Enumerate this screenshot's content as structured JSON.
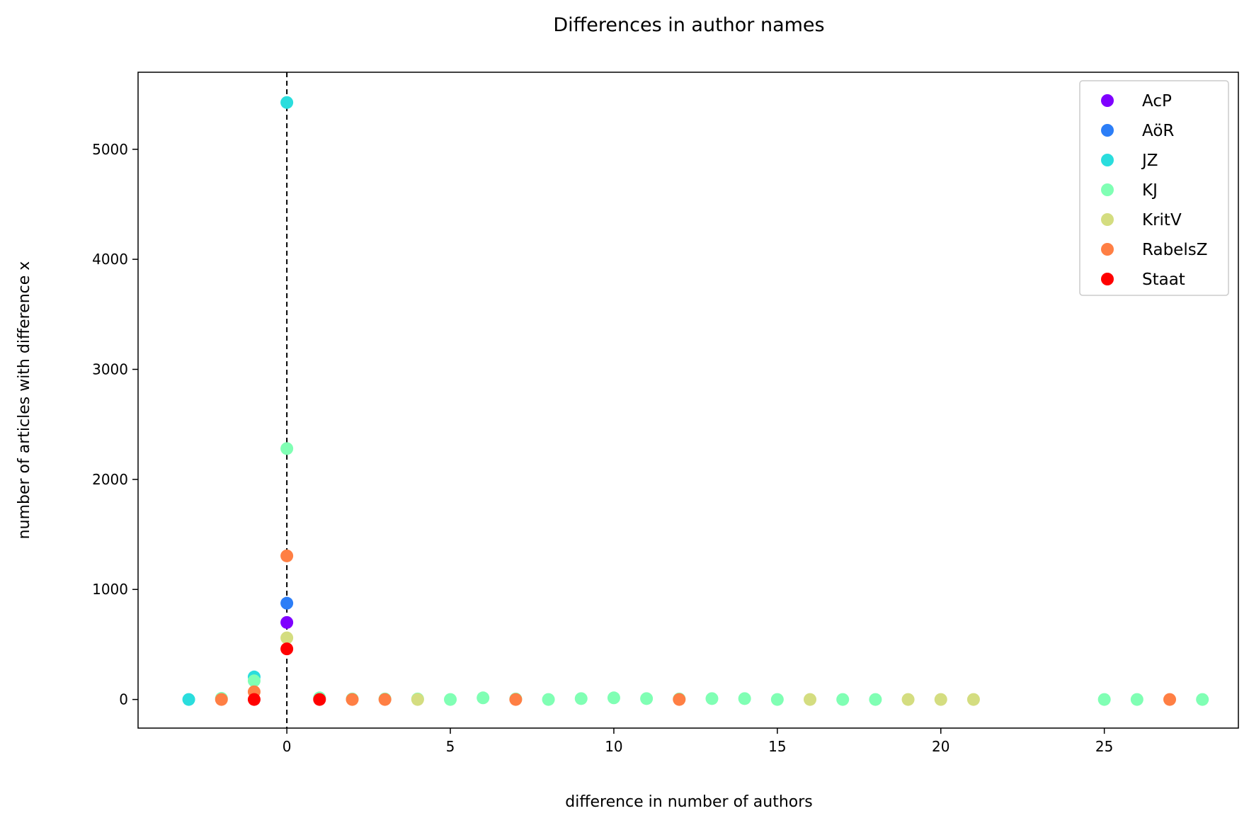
{
  "chart_data": {
    "type": "scatter",
    "title": "Differences in author names",
    "xlabel": "difference in number of authors",
    "ylabel": "number of articles with difference x",
    "xlim": [
      -4.55,
      29.1
    ],
    "ylim": [
      -260,
      5700
    ],
    "xticks": [
      0,
      5,
      10,
      15,
      20,
      25
    ],
    "yticks": [
      0,
      1000,
      2000,
      3000,
      4000,
      5000
    ],
    "grid": false,
    "legend_position": "top-right",
    "reference_line": {
      "x": 0,
      "style": "dashed",
      "color": "#000000"
    },
    "series": [
      {
        "name": "AcP",
        "color": "#7f00ff",
        "points": [
          [
            0,
            700
          ]
        ]
      },
      {
        "name": "AöR",
        "color": "#2c7ef7",
        "points": [
          [
            0,
            875
          ]
        ]
      },
      {
        "name": "JZ",
        "color": "#2adddd",
        "points": [
          [
            -3,
            0
          ],
          [
            -1,
            205
          ],
          [
            0,
            5425
          ]
        ]
      },
      {
        "name": "KJ",
        "color": "#80ffb4",
        "points": [
          [
            -2,
            10
          ],
          [
            -1,
            170
          ],
          [
            0,
            2280
          ],
          [
            1,
            15
          ],
          [
            2,
            5
          ],
          [
            3,
            5
          ],
          [
            4,
            5
          ],
          [
            5,
            0
          ],
          [
            6,
            15
          ],
          [
            7,
            5
          ],
          [
            8,
            0
          ],
          [
            9,
            8
          ],
          [
            10,
            15
          ],
          [
            11,
            8
          ],
          [
            12,
            5
          ],
          [
            13,
            8
          ],
          [
            14,
            8
          ],
          [
            15,
            0
          ],
          [
            17,
            0
          ],
          [
            18,
            0
          ],
          [
            25,
            0
          ],
          [
            26,
            0
          ],
          [
            28,
            0
          ]
        ]
      },
      {
        "name": "KritV",
        "color": "#d4dd80",
        "points": [
          [
            0,
            560
          ],
          [
            4,
            0
          ],
          [
            16,
            0
          ],
          [
            19,
            0
          ],
          [
            20,
            0
          ],
          [
            21,
            0
          ]
        ]
      },
      {
        "name": "RabelsZ",
        "color": "#ff7f44",
        "points": [
          [
            -2,
            0
          ],
          [
            -1,
            70
          ],
          [
            0,
            1305
          ],
          [
            2,
            0
          ],
          [
            3,
            0
          ],
          [
            7,
            0
          ],
          [
            12,
            0
          ],
          [
            27,
            0
          ]
        ]
      },
      {
        "name": "Staat",
        "color": "#ff0000",
        "points": [
          [
            -1,
            0
          ],
          [
            0,
            460
          ],
          [
            1,
            0
          ]
        ]
      }
    ]
  }
}
